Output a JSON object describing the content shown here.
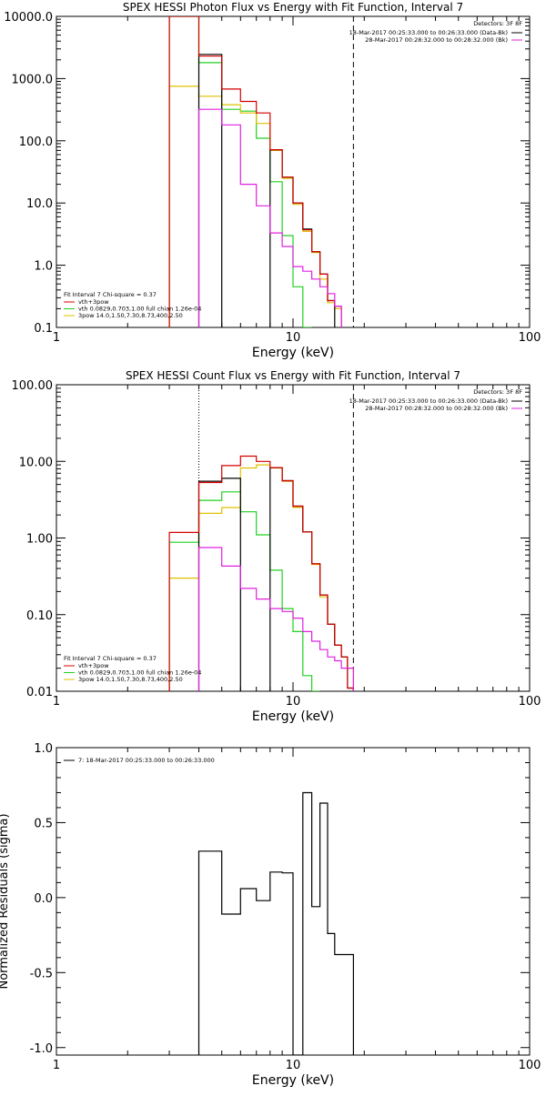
{
  "colors": {
    "background": "#ffffff",
    "axis": "#000000",
    "total": "#d40000",
    "data": "#000000",
    "background_spectrum": "#e020e0",
    "vth": "#20d020",
    "bpow": "#e0c000"
  },
  "chart_data": [
    {
      "type": "line",
      "title": "SPEX HESSI Photon Flux vs Energy with Fit Function, Interval 7",
      "xlabel": "Energy (keV)",
      "ylabel": "",
      "xscale": "log",
      "yscale": "log",
      "xlim": [
        1,
        100
      ],
      "ylim": [
        0.1,
        10000
      ],
      "xticks": [
        1,
        10,
        100
      ],
      "xtick_labels": [
        "1",
        "10",
        "100"
      ],
      "yticks": [
        0.1,
        1,
        10,
        100,
        1000,
        10000
      ],
      "ytick_labels": [
        "0.1",
        "1.0",
        "10.0",
        "100.0",
        "1000.0",
        "10000.0"
      ],
      "vlines": [
        {
          "x": 4.0,
          "style": "dotted"
        },
        {
          "x": 18.0,
          "style": "dashed"
        }
      ],
      "legend_top_right": {
        "header": "Detectors: 3F 8F",
        "entries": [
          {
            "label": "18-Mar-2017 00:25:33.000 to 00:26:33.000 (Data-Bk)",
            "color": "#000000"
          },
          {
            "label": "28-Mar-2017 00:28:32.000 to 00:28:32.000 (Bk)",
            "color": "#e020e0"
          }
        ]
      },
      "legend_bottom_left": {
        "header": "Fit Interval 7   Chi-square = 0.37",
        "entries": [
          {
            "label": "vth+3pow",
            "color": "#d40000"
          },
          {
            "label": "vth 0.0829,0.703,1.00  full chian 1.26e-04",
            "color": "#20d020"
          },
          {
            "label": "3pow 14.0,1.50,7.30,8.73,400,2.50",
            "color": "#e0c000"
          }
        ]
      },
      "edges": [
        3,
        4,
        5,
        6,
        7,
        8,
        9,
        10,
        11,
        12,
        13,
        14,
        15,
        16,
        17,
        18
      ],
      "series": [
        {
          "key": "vth",
          "color": "#20d020",
          "values": [
            10000,
            1800,
            320,
            300,
            110,
            22,
            3.0,
            0.45,
            0.1,
            null,
            null,
            null,
            null,
            null,
            null
          ]
        },
        {
          "key": "bpow",
          "color": "#e0c000",
          "values": [
            750,
            520,
            380,
            280,
            190,
            70,
            25,
            9.5,
            3.5,
            1.6,
            0.6,
            0.25,
            0.2,
            null,
            null
          ]
        },
        {
          "key": "data",
          "color": "#000000",
          "values": [
            null,
            2450,
            null,
            null,
            null,
            72,
            26,
            10,
            3.8,
            1.65,
            0.72,
            0.27,
            null,
            null,
            null
          ]
        },
        {
          "key": "total",
          "color": "#d40000",
          "values": [
            10000,
            2300,
            680,
            430,
            280,
            72,
            26,
            10,
            3.7,
            1.65,
            0.72,
            0.27,
            0.22,
            null,
            null
          ]
        },
        {
          "key": "background_spectrum",
          "color": "#e020e0",
          "values": [
            null,
            320,
            180,
            20,
            9,
            3.3,
            2.0,
            0.95,
            0.8,
            0.6,
            0.45,
            0.35,
            0.22,
            null,
            null
          ]
        }
      ]
    },
    {
      "type": "line",
      "title": "SPEX HESSI Count Flux vs Energy with Fit Function, Interval 7",
      "xlabel": "Energy (keV)",
      "ylabel": "",
      "xscale": "log",
      "yscale": "log",
      "xlim": [
        1,
        100
      ],
      "ylim": [
        0.01,
        100
      ],
      "xticks": [
        1,
        10,
        100
      ],
      "xtick_labels": [
        "1",
        "10",
        "100"
      ],
      "yticks": [
        0.01,
        0.1,
        1,
        10,
        100
      ],
      "ytick_labels": [
        "0.01",
        "0.10",
        "1.00",
        "10.00",
        "100.00"
      ],
      "vlines": [
        {
          "x": 4.0,
          "style": "dotted"
        },
        {
          "x": 18.0,
          "style": "dashed"
        }
      ],
      "legend_top_right": {
        "header": "Detectors: 3F 8F",
        "entries": [
          {
            "label": "18-Mar-2017 00:25:33.000 to 00:26:33.000 (Data-Bk)",
            "color": "#000000"
          },
          {
            "label": "28-Mar-2017 00:28:32.000 to 00:28:32.000 (Bk)",
            "color": "#e020e0"
          }
        ]
      },
      "legend_bottom_left": {
        "header": "Fit Interval 7   Chi-square = 0.37",
        "entries": [
          {
            "label": "vth+3pow",
            "color": "#d40000"
          },
          {
            "label": "vth 0.0829,0.703,1.00  full chian 1.26e-04",
            "color": "#20d020"
          },
          {
            "label": "3pow 14.0,1.50,7.30,8.73,400,2.50",
            "color": "#e0c000"
          }
        ]
      },
      "edges": [
        3,
        4,
        5,
        6,
        7,
        8,
        9,
        10,
        11,
        12,
        13,
        14,
        15,
        16,
        17,
        18
      ],
      "series": [
        {
          "key": "vth",
          "color": "#20d020",
          "values": [
            0.88,
            3.1,
            4.0,
            2.2,
            1.1,
            0.38,
            0.12,
            0.06,
            0.016,
            0.006,
            null,
            null,
            null,
            null,
            null
          ]
        },
        {
          "key": "bpow",
          "color": "#e0c000",
          "values": [
            0.3,
            2.1,
            2.5,
            8.2,
            9.0,
            8.2,
            5.5,
            2.5,
            1.2,
            0.45,
            0.17,
            0.075,
            0.04,
            0.028,
            0.02
          ]
        },
        {
          "key": "data",
          "color": "#000000",
          "values": [
            null,
            5.5,
            6.0,
            null,
            null,
            8.3,
            5.6,
            2.6,
            1.2,
            0.46,
            0.18,
            0.075,
            0.04,
            0.028,
            0.011
          ]
        },
        {
          "key": "total",
          "color": "#d40000",
          "values": [
            1.18,
            5.3,
            8.8,
            11.7,
            10.0,
            8.3,
            5.6,
            2.6,
            1.2,
            0.46,
            0.18,
            0.075,
            0.04,
            0.028,
            0.011
          ]
        },
        {
          "key": "background_spectrum",
          "color": "#e020e0",
          "values": [
            null,
            0.75,
            0.43,
            0.22,
            0.16,
            0.12,
            0.11,
            0.09,
            0.06,
            0.045,
            0.035,
            0.028,
            0.025,
            0.02,
            0.02
          ]
        }
      ]
    },
    {
      "type": "line",
      "title": "",
      "xlabel": "Energy (keV)",
      "ylabel": "Normalized Residuals (sigma)",
      "xscale": "log",
      "yscale": "linear",
      "xlim": [
        1,
        100
      ],
      "ylim": [
        -1.05,
        1.0
      ],
      "xticks": [
        1,
        10,
        100
      ],
      "xtick_labels": [
        "1",
        "10",
        "100"
      ],
      "yticks": [
        -1.0,
        -0.5,
        0.0,
        0.5,
        1.0
      ],
      "ytick_labels": [
        "-1.0",
        "-0.5",
        "0.0",
        "0.5",
        "1.0"
      ],
      "legend_top_left": {
        "entries": [
          {
            "label": "7: 18-Mar-2017 00:25:33.000 to 00:26:33.000",
            "color": "#000000"
          }
        ]
      },
      "edges": [
        4,
        5,
        6,
        7,
        8,
        9,
        10,
        11,
        12,
        13,
        14,
        15,
        16,
        17,
        18
      ],
      "series": [
        {
          "key": "residuals",
          "color": "#000000",
          "values": [
            0.31,
            -0.11,
            0.06,
            -0.02,
            0.17,
            0.165,
            -1.05,
            0.7,
            -0.06,
            0.63,
            -0.24,
            -0.38,
            -0.38,
            -0.38
          ]
        }
      ]
    }
  ]
}
